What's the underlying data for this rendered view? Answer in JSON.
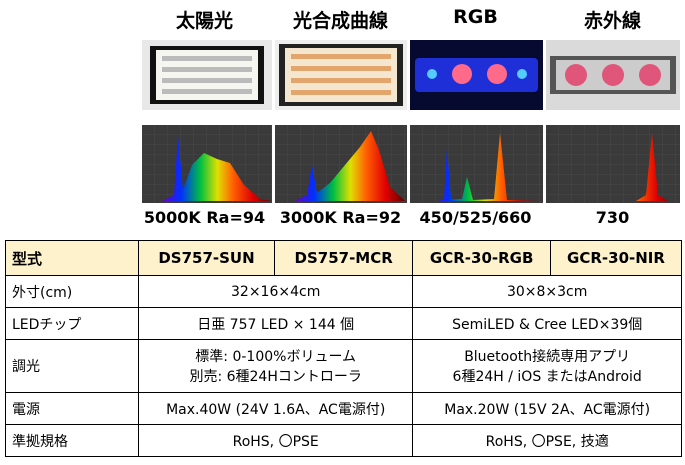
{
  "columns": [
    {
      "label": "太陽光",
      "caption": "5000K Ra=94"
    },
    {
      "label": "光合成曲線",
      "caption": "3000K Ra=92"
    },
    {
      "label": "RGB",
      "caption": "450/525/660"
    },
    {
      "label": "赤外線",
      "caption": "730"
    }
  ],
  "table": {
    "header": [
      "型式",
      "DS757-SUN",
      "DS757-MCR",
      "GCR-30-RGB",
      "GCR-30-NIR"
    ],
    "rows": [
      [
        "外寸(cm)",
        "32×16×4cm",
        "30×8×3cm"
      ],
      [
        "LEDチップ",
        "日亜 757 LED × 144 個",
        "SemiLED & Cree LED×39個"
      ],
      [
        "調光",
        [
          "標準: 0-100%ボリューム",
          "別売: 6種24Hコントローラ"
        ],
        [
          "Bluetooth接続専用アプリ",
          "6種24H / iOS またはAndroid"
        ]
      ],
      [
        "電源",
        "Max.40W (24V 1.6A、AC電源付)",
        "Max.20W (15V 2A、AC電源付)"
      ],
      [
        "準拠規格",
        "RoHS, 〇PSE",
        "RoHS, 〇PSE, 技適"
      ]
    ]
  }
}
